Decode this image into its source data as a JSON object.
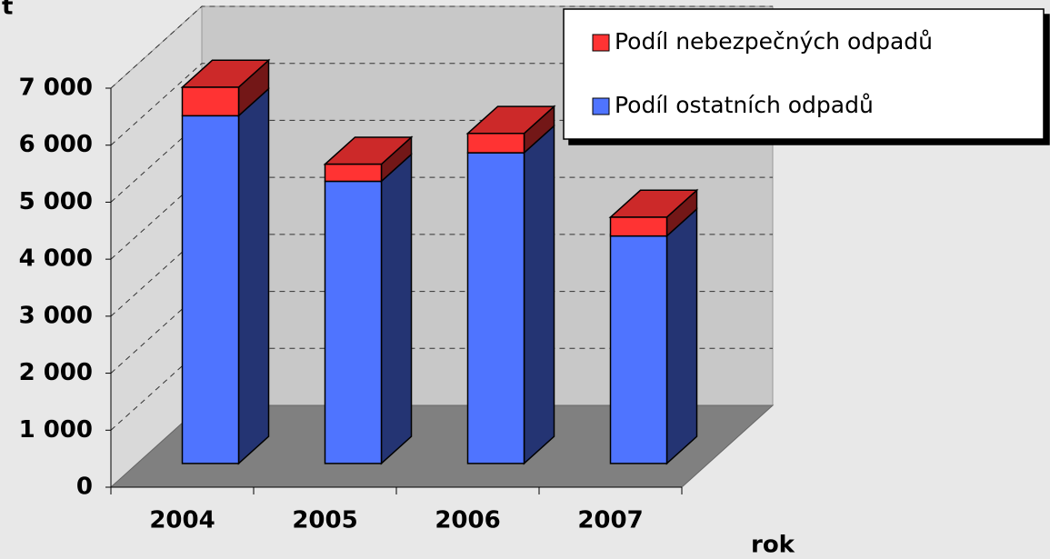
{
  "chart_data": {
    "type": "bar3d_stacked",
    "y_label": "t",
    "x_label": "rok",
    "categories": [
      "2004",
      "2005",
      "2006",
      "2007"
    ],
    "series": [
      {
        "name": "Podíl nebezpečných odpadů",
        "color": "#ff3333",
        "values": [
          500,
          300,
          340,
          330
        ]
      },
      {
        "name": "Podíl ostatních odpadů",
        "color": "#4f74ff",
        "values": [
          6100,
          4950,
          5450,
          3990
        ]
      }
    ],
    "ylim": [
      0,
      7000
    ],
    "yticks": [
      0,
      {
        "value": 1000,
        "label": "1 000"
      },
      {
        "value": 2000,
        "label": "2 000"
      },
      {
        "value": 3000,
        "label": "3 000"
      },
      {
        "value": 4000,
        "label": "4 000"
      },
      {
        "value": 5000,
        "label": "5 000"
      },
      {
        "value": 6000,
        "label": "6 000"
      },
      {
        "value": 7000,
        "label": "7 000"
      }
    ],
    "grid": true,
    "legend": "top-right"
  }
}
